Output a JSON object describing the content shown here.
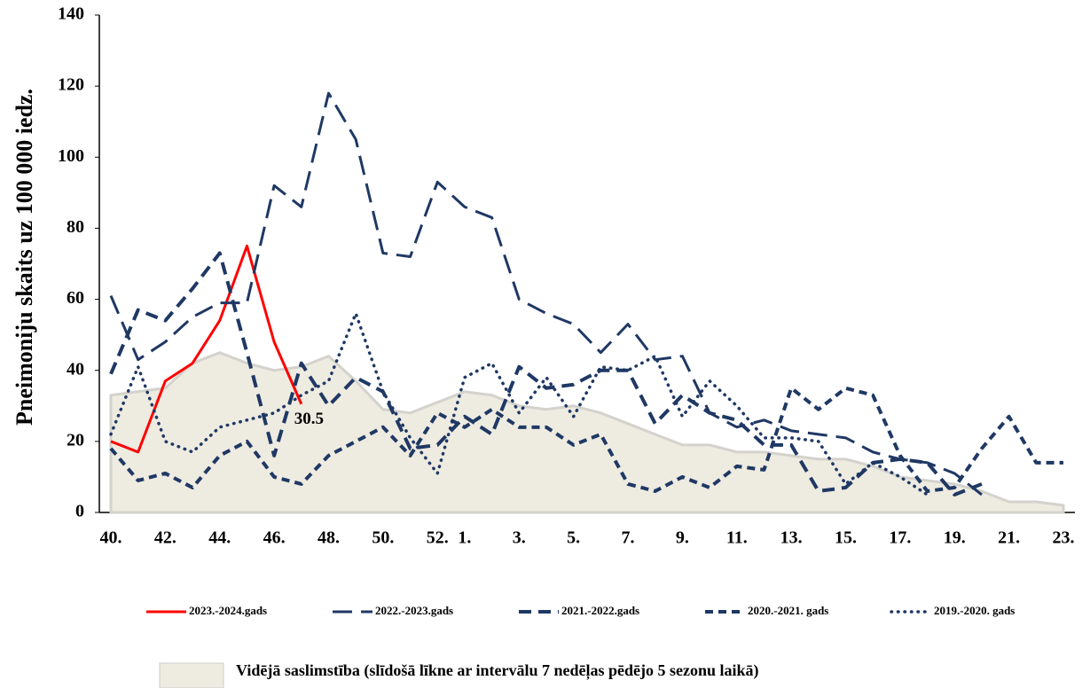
{
  "chart_data": {
    "type": "line",
    "y_label": "Pneimoniju skaits uz 100 000 iedz.",
    "categories": [
      "40.",
      null,
      "42.",
      null,
      "44.",
      null,
      "46.",
      null,
      "48.",
      null,
      "50.",
      null,
      "52.",
      "1.",
      null,
      "3.",
      null,
      "5.",
      null,
      "7.",
      null,
      "9.",
      null,
      "11.",
      null,
      "13.",
      null,
      "15.",
      null,
      "17.",
      null,
      "19.",
      null,
      "21.",
      null,
      "23."
    ],
    "ylim": [
      0,
      140
    ],
    "yticks": [
      0,
      20,
      40,
      60,
      80,
      100,
      120,
      140
    ],
    "series": [
      {
        "name": "2023.-2024.gads",
        "color": "#ff0000",
        "style": "solid",
        "values": [
          20,
          17,
          37,
          42,
          54,
          75,
          48,
          30.5,
          null,
          null,
          null,
          null,
          null,
          null,
          null,
          null,
          null,
          null,
          null,
          null,
          null,
          null,
          null,
          null,
          null,
          null,
          null,
          null,
          null,
          null,
          null,
          null,
          null,
          null,
          null,
          null
        ]
      },
      {
        "name": "2022.-2023.gads",
        "color": "#1f3864",
        "style": "long-dash",
        "values": [
          61,
          43,
          48,
          55,
          59,
          59,
          92,
          86,
          118,
          105,
          73,
          72,
          93,
          86,
          83,
          60,
          56,
          53,
          45,
          53,
          43,
          44,
          28,
          24,
          26,
          23,
          22,
          21,
          17,
          15,
          14,
          11,
          5,
          null,
          null,
          null
        ]
      },
      {
        "name": "2021.-2022.gads",
        "color": "#1f3864",
        "style": "dash",
        "values": [
          39,
          57,
          54,
          63,
          73,
          45,
          16,
          42,
          30,
          38,
          34,
          18,
          19,
          27,
          22,
          41,
          35,
          36,
          40,
          40,
          25,
          33,
          28,
          26,
          19,
          19,
          6,
          7,
          14,
          15,
          14,
          5,
          8,
          null,
          null,
          null
        ]
      },
      {
        "name": "2020.-2021. gads",
        "color": "#1f3864",
        "style": "short-dash",
        "values": [
          18,
          9,
          11,
          7,
          16,
          20,
          10,
          8,
          16,
          20,
          24,
          16,
          28,
          24,
          29,
          24,
          24,
          19,
          22,
          8,
          6,
          10,
          7,
          13,
          12,
          35,
          29,
          35,
          33,
          16,
          6,
          7,
          18,
          27,
          14,
          14
        ]
      },
      {
        "name": "2019.-2020. gads",
        "color": "#1f3864",
        "style": "dot",
        "values": [
          22,
          41,
          20,
          17,
          24,
          26,
          28,
          33,
          37,
          56,
          34,
          21,
          11,
          38,
          42,
          28,
          38,
          27,
          41,
          40,
          44,
          27,
          37,
          30,
          21,
          21,
          20,
          8,
          14,
          10,
          5,
          null,
          null,
          null,
          null,
          null
        ]
      },
      {
        "name": "Vidējā saslimstība (slīdošā līkne ar intervālu 7 nedēļas pēdējo 5 sezonu laikā)",
        "color": "#eeebe1",
        "style": "area",
        "values": [
          33,
          34,
          35,
          42,
          45,
          42,
          40,
          41,
          44,
          37,
          29,
          28,
          31,
          34,
          33,
          30,
          29,
          30,
          28,
          25,
          22,
          19,
          19,
          17,
          17,
          16,
          15,
          15,
          13,
          10,
          9,
          8,
          6,
          3,
          3,
          2
        ]
      }
    ],
    "value_label_path": "chart_data.series.0.values.7"
  }
}
